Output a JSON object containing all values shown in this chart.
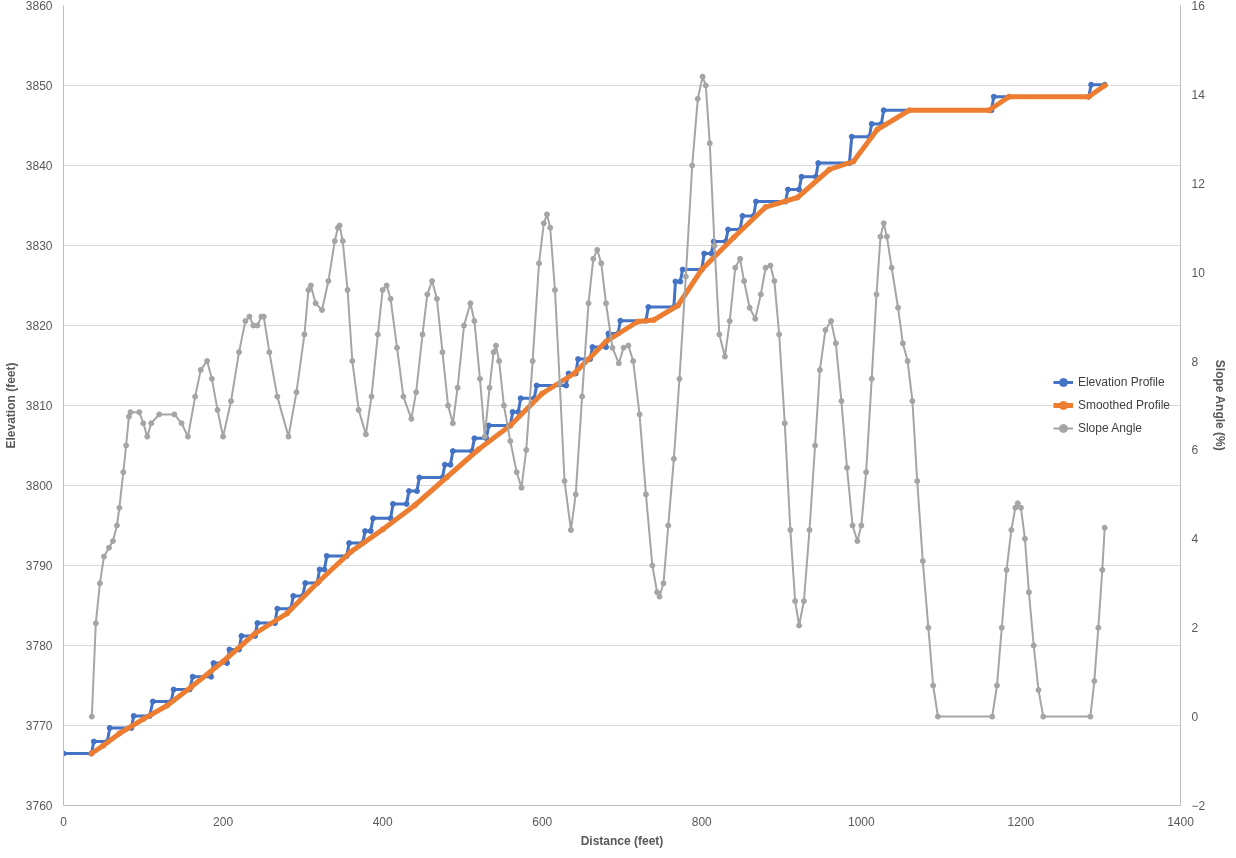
{
  "chart_data": {
    "type": "line",
    "xlabel": "Distance (feet)",
    "ylabel": "Elevation (feet)",
    "y2label": "Slope Angle (%)",
    "xlim": [
      0,
      1400
    ],
    "xticks": [
      0,
      200,
      400,
      600,
      800,
      1000,
      1200,
      1400
    ],
    "ylim": [
      3760,
      3860
    ],
    "yticks": [
      3760,
      3770,
      3780,
      3790,
      3800,
      3810,
      3820,
      3830,
      3840,
      3850,
      3860
    ],
    "y2lim": [
      -2,
      16
    ],
    "y2ticks": [
      -2,
      0,
      2,
      4,
      6,
      8,
      10,
      12,
      14,
      16
    ],
    "grid": "y",
    "legend": "right",
    "marker": "circle",
    "line_style": "solid",
    "series": [
      {
        "name": "Elevation Profile",
        "color": "#4472c4",
        "x": [
          0,
          35,
          38,
          55,
          58,
          85,
          88,
          108,
          112,
          135,
          138,
          158,
          162,
          185,
          188,
          205,
          208,
          220,
          223,
          240,
          243,
          265,
          268,
          285,
          288,
          300,
          303,
          318,
          321,
          327,
          330,
          355,
          358,
          375,
          378,
          385,
          388,
          410,
          413,
          430,
          433,
          443,
          446,
          475,
          478,
          485,
          488,
          512,
          515,
          530,
          533,
          560,
          563,
          570,
          573,
          590,
          593,
          630,
          633,
          642,
          645,
          660,
          663,
          680,
          683,
          695,
          698,
          730,
          733,
          765,
          767,
          773,
          776,
          800,
          803,
          812,
          815,
          830,
          833,
          848,
          851,
          865,
          868,
          905,
          908,
          922,
          925,
          943,
          946,
          985,
          988,
          1010,
          1013,
          1025,
          1028,
          1163,
          1166,
          1285,
          1288,
          1305
        ],
        "values": [
          3766.5,
          3766.5,
          3768,
          3768,
          3769.7,
          3769.7,
          3771.2,
          3771.2,
          3773,
          3773,
          3774.5,
          3774.5,
          3776.1,
          3776.1,
          3777.8,
          3777.8,
          3779.5,
          3779.5,
          3781.2,
          3781.2,
          3782.8,
          3782.8,
          3784.6,
          3784.6,
          3786.2,
          3786.2,
          3787.8,
          3787.8,
          3789.5,
          3789.5,
          3791.2,
          3791.2,
          3792.8,
          3792.8,
          3794.3,
          3794.3,
          3795.9,
          3795.9,
          3797.7,
          3797.7,
          3799.3,
          3799.3,
          3801,
          3801,
          3802.6,
          3802.6,
          3804.3,
          3804.3,
          3805.9,
          3805.9,
          3807.5,
          3807.5,
          3809.2,
          3809.2,
          3810.9,
          3810.9,
          3812.5,
          3812.5,
          3814,
          3814,
          3815.8,
          3815.8,
          3817.3,
          3817.3,
          3819,
          3819,
          3820.6,
          3820.6,
          3822.3,
          3822.3,
          3825.5,
          3825.5,
          3827,
          3827,
          3829,
          3829,
          3830.5,
          3830.5,
          3832,
          3832,
          3833.7,
          3833.7,
          3835.5,
          3835.5,
          3837,
          3837,
          3838.6,
          3838.6,
          3840.3,
          3840.3,
          3843.6,
          3843.6,
          3845.2,
          3845.2,
          3846.9,
          3846.9,
          3848.6,
          3848.6,
          3850.1,
          3850.1
        ]
      },
      {
        "name": "Smoothed Profile",
        "color": "#ed7d31",
        "x": [
          35,
          50,
          70,
          100,
          130,
          160,
          200,
          240,
          280,
          320,
          360,
          400,
          440,
          480,
          520,
          560,
          600,
          640,
          680,
          720,
          740,
          770,
          800,
          840,
          880,
          920,
          960,
          990,
          1020,
          1060,
          1160,
          1185,
          1285,
          1305
        ],
        "values": [
          3766.5,
          3767.5,
          3769,
          3770.8,
          3772.5,
          3774.8,
          3778,
          3781.5,
          3784,
          3788,
          3791.7,
          3794.5,
          3797.5,
          3801,
          3804.5,
          3807.5,
          3811.5,
          3814,
          3818,
          3820.5,
          3820.7,
          3822.5,
          3827,
          3831,
          3834.8,
          3836,
          3839.5,
          3840.5,
          3844.5,
          3846.9,
          3846.9,
          3848.6,
          3848.6,
          3850
        ]
      },
      {
        "name": "Slope Angle",
        "color": "#a5a5a5",
        "axis": "y2",
        "x": [
          35.5,
          40.5,
          45.6,
          50.7,
          57,
          62,
          67,
          70,
          75,
          78.5,
          82,
          84,
          95,
          100,
          105,
          110,
          120,
          139,
          148,
          156,
          165,
          172,
          180,
          186,
          193,
          200,
          210,
          220,
          228,
          233,
          238,
          243,
          248,
          251,
          258,
          268,
          282,
          292,
          302,
          307,
          310,
          316,
          324,
          332,
          340,
          344,
          346,
          350,
          356,
          362,
          370,
          379,
          386,
          394,
          400,
          405,
          410,
          418,
          426,
          436,
          442,
          450,
          456,
          462,
          468,
          475,
          482,
          488,
          494,
          502,
          510,
          515,
          522,
          528,
          534,
          539,
          542,
          546,
          552,
          560,
          568,
          574,
          580,
          588,
          596,
          602,
          606,
          610,
          616,
          622,
          628,
          636,
          642,
          650,
          658,
          664,
          669,
          674,
          680,
          688,
          696,
          702,
          708,
          714,
          722,
          730,
          738,
          744,
          747,
          752,
          758,
          765,
          772,
          780,
          788,
          795,
          801,
          805,
          810,
          816,
          822,
          829,
          835,
          842,
          848,
          853,
          860,
          867,
          874,
          880,
          886,
          891,
          897,
          904,
          911,
          917,
          922,
          928,
          935,
          942,
          948,
          955,
          962,
          968,
          975,
          982,
          989,
          995,
          1000,
          1006,
          1013,
          1019,
          1024,
          1028,
          1032,
          1038,
          1046,
          1052,
          1058,
          1064,
          1070,
          1077,
          1084,
          1090,
          1096,
          1164,
          1170,
          1176,
          1182,
          1188,
          1193,
          1196,
          1200,
          1205,
          1210,
          1216,
          1222,
          1228,
          1287,
          1292,
          1297,
          1302,
          1305
        ],
        "values": [
          0,
          2.1,
          3.0,
          3.6,
          3.8,
          3.95,
          4.3,
          4.7,
          5.5,
          6.1,
          6.75,
          6.85,
          6.85,
          6.6,
          6.3,
          6.6,
          6.8,
          6.8,
          6.6,
          6.3,
          7.2,
          7.8,
          8.0,
          7.6,
          6.9,
          6.3,
          7.1,
          8.2,
          8.9,
          9.0,
          8.8,
          8.8,
          9.0,
          9.0,
          8.2,
          7.2,
          6.3,
          7.3,
          8.6,
          9.6,
          9.7,
          9.3,
          9.15,
          9.8,
          10.7,
          11.0,
          11.05,
          10.7,
          9.6,
          8.0,
          6.9,
          6.35,
          7.2,
          8.6,
          9.6,
          9.7,
          9.4,
          8.3,
          7.2,
          6.7,
          7.3,
          8.6,
          9.5,
          9.8,
          9.4,
          8.2,
          7.0,
          6.6,
          7.4,
          8.8,
          9.3,
          8.9,
          7.6,
          6.3,
          7.4,
          8.2,
          8.35,
          8.0,
          7.0,
          6.2,
          5.5,
          5.15,
          6.0,
          8.0,
          10.2,
          11.1,
          11.3,
          11.0,
          9.6,
          7.5,
          5.3,
          4.2,
          5.0,
          7.2,
          9.3,
          10.3,
          10.5,
          10.2,
          9.3,
          8.3,
          7.95,
          8.3,
          8.35,
          8.0,
          6.8,
          5.0,
          3.4,
          2.8,
          2.7,
          3.0,
          4.3,
          5.8,
          7.6,
          9.9,
          12.4,
          13.9,
          14.4,
          14.2,
          12.9,
          10.6,
          8.6,
          8.1,
          8.9,
          10.1,
          10.3,
          9.8,
          9.2,
          8.95,
          9.5,
          10.1,
          10.15,
          9.8,
          8.6,
          6.6,
          4.2,
          2.6,
          2.05,
          2.6,
          4.2,
          6.1,
          7.8,
          8.7,
          8.9,
          8.4,
          7.1,
          5.6,
          4.3,
          3.95,
          4.3,
          5.5,
          7.6,
          9.5,
          10.8,
          11.1,
          10.8,
          10.1,
          9.2,
          8.4,
          8.0,
          7.1,
          5.3,
          3.5,
          2.0,
          0.7,
          0,
          0,
          0.7,
          2.0,
          3.3,
          4.2,
          4.7,
          4.8,
          4.7,
          4.0,
          2.8,
          1.6,
          0.6,
          0,
          0,
          0.8,
          2.0,
          3.3,
          4.25
        ]
      }
    ]
  }
}
